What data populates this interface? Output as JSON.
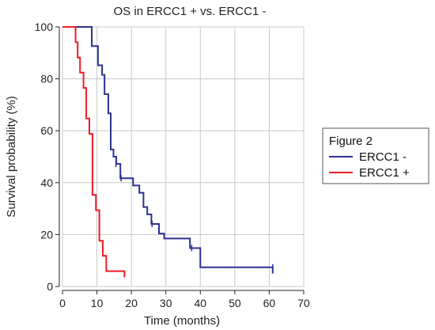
{
  "chart_data": {
    "type": "line",
    "subtype": "kaplan-meier step",
    "title": "OS in ERCC1 + vs. ERCC1 -",
    "xlabel": "Time (months)",
    "ylabel": "Survival probability (%)",
    "xlim": [
      0,
      70
    ],
    "ylim": [
      0,
      100
    ],
    "xticks": [
      0,
      10,
      20,
      30,
      40,
      50,
      60,
      70
    ],
    "yticks": [
      0,
      20,
      40,
      60,
      80,
      100
    ],
    "grid": true,
    "legend": {
      "title": "Figure 2",
      "placement": "right"
    },
    "series": [
      {
        "name": "ERCC1 -",
        "color": "#2e3192",
        "x": [
          0,
          8.5,
          10.3,
          11.5,
          12.2,
          13.3,
          14.0,
          14.8,
          15.6,
          16.8,
          18.0,
          20.5,
          22.3,
          23.5,
          24.6,
          25.8,
          28.0,
          29.5,
          37.0,
          40.0,
          61.0
        ],
        "y": [
          100,
          92.6,
          85.2,
          81.5,
          74.1,
          66.7,
          52.8,
          50.0,
          47.2,
          41.7,
          41.7,
          38.9,
          36.1,
          30.6,
          27.8,
          24.1,
          20.4,
          18.5,
          14.8,
          7.4,
          5.0
        ],
        "censored": [
          {
            "x": 15.5,
            "y": 47.2
          },
          {
            "x": 17.0,
            "y": 41.7
          },
          {
            "x": 26.0,
            "y": 24.1
          },
          {
            "x": 37.5,
            "y": 14.8
          },
          {
            "x": 61.0,
            "y": 7.4
          }
        ]
      },
      {
        "name": "ERCC1 +",
        "color": "#ee1c25",
        "x": [
          0,
          3.8,
          4.4,
          5.1,
          6.1,
          6.9,
          7.8,
          8.7,
          9.7,
          10.7,
          11.7,
          12.7,
          18.0
        ],
        "y": [
          100,
          94.1,
          88.2,
          82.4,
          76.5,
          64.7,
          58.8,
          35.3,
          29.4,
          17.6,
          11.8,
          5.9,
          3.5
        ],
        "censored": []
      }
    ]
  }
}
